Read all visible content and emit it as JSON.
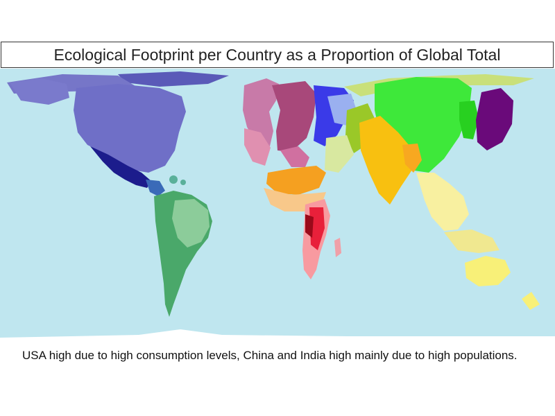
{
  "title": "Ecological Footprint per Country as a Proportion of Global Total",
  "caption": "USA high due to high consumption levels, China and India high mainly due to high populations.",
  "colors": {
    "ocean": "#bfe6ef",
    "north_america": "#6f6fc7",
    "mexico_central_america": "#1c1c8c",
    "south_america": "#4aa86a",
    "europe_west": "#b8608a",
    "europe_east": "#3a3ae8",
    "russia": "#c9e07a",
    "middle_east": "#f5a020",
    "africa_north": "#f8c88a",
    "africa_south": "#e8203a",
    "china": "#3ee83a",
    "japan": "#6a0a7a",
    "india": "#f8c010",
    "southeast_asia": "#f8f0a0",
    "australia": "#f8f078"
  }
}
